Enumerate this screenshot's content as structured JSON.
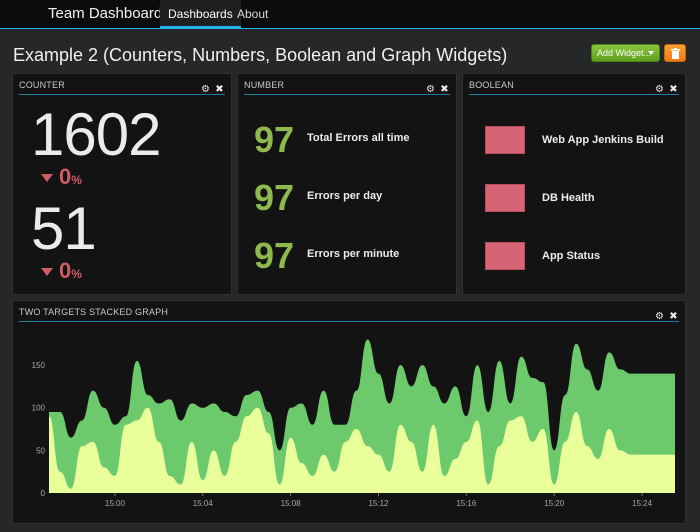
{
  "navbar": {
    "brand": "Team Dashboard",
    "links": [
      {
        "label": "Dashboards",
        "active": true
      },
      {
        "label": "About",
        "active": false
      }
    ],
    "accent_color": "#23b3e8"
  },
  "page": {
    "title": "Example 2 (Counters, Numbers, Boolean and Graph Widgets)",
    "add_widget_label": "Add Widget...",
    "add_widget_color": "#6cae27",
    "trash_color": "#f5891f"
  },
  "widgets": {
    "counter": {
      "title": "COUNTER",
      "items": [
        {
          "value": "1602",
          "delta": "0",
          "unit": "%"
        },
        {
          "value": "51",
          "delta": "0",
          "unit": "%"
        }
      ],
      "delta_color": "#cf5b65"
    },
    "number": {
      "title": "NUMBER",
      "items": [
        {
          "value": "97",
          "label": "Total Errors all time"
        },
        {
          "value": "97",
          "label": "Errors per day"
        },
        {
          "value": "97",
          "label": "Errors per minute"
        }
      ],
      "value_color": "#8fb94c"
    },
    "boolean": {
      "title": "BOOLEAN",
      "items": [
        {
          "label": "Web App Jenkins Build",
          "state": false
        },
        {
          "label": "DB Health",
          "state": false
        },
        {
          "label": "App Status",
          "state": false
        }
      ],
      "false_color": "#d76474"
    },
    "graph": {
      "title": "TWO TARGETS STACKED GRAPH"
    }
  },
  "chart_data": {
    "type": "area",
    "stacked": true,
    "title": "TWO TARGETS STACKED GRAPH",
    "xlabel": "",
    "ylabel": "",
    "x_ticks": [
      "15:00",
      "15:04",
      "15:08",
      "15:12",
      "15:16",
      "15:20",
      "15:24"
    ],
    "y_ticks": [
      0,
      50,
      100,
      150
    ],
    "ylim": [
      0,
      190
    ],
    "grid": false,
    "legend": "none",
    "x": [
      "14:57",
      "14:57:30",
      "14:58",
      "14:58:30",
      "14:59",
      "14:59:30",
      "15:00",
      "15:00:30",
      "15:01",
      "15:01:30",
      "15:02",
      "15:02:30",
      "15:03",
      "15:03:30",
      "15:04",
      "15:04:30",
      "15:05",
      "15:05:30",
      "15:06",
      "15:06:30",
      "15:07",
      "15:07:30",
      "15:08",
      "15:08:30",
      "15:09",
      "15:09:30",
      "15:10",
      "15:10:30",
      "15:11",
      "15:11:30",
      "15:12",
      "15:12:30",
      "15:13",
      "15:13:30",
      "15:14",
      "15:14:30",
      "15:15",
      "15:15:30",
      "15:16",
      "15:16:30",
      "15:17",
      "15:17:30",
      "15:18",
      "15:18:30",
      "15:19",
      "15:19:30",
      "15:20",
      "15:20:30",
      "15:21",
      "15:21:30",
      "15:22",
      "15:22:30",
      "15:23",
      "15:23:30",
      "15:24",
      "15:24:30",
      "15:25",
      "15:25:30"
    ],
    "series": [
      {
        "color": "#e8ff9a",
        "values": [
          90,
          25,
          5,
          55,
          60,
          30,
          20,
          80,
          85,
          100,
          60,
          20,
          10,
          60,
          15,
          50,
          20,
          60,
          90,
          100,
          70,
          10,
          65,
          35,
          20,
          45,
          25,
          60,
          75,
          55,
          45,
          25,
          80,
          60,
          25,
          80,
          20,
          40,
          60,
          85,
          10,
          55,
          85,
          90,
          60,
          75,
          10,
          60,
          95,
          55,
          40,
          75,
          50,
          45,
          45,
          45,
          45,
          45
        ]
      },
      {
        "color": "#6cc96c",
        "values": [
          5,
          70,
          60,
          30,
          60,
          70,
          60,
          10,
          70,
          15,
          45,
          90,
          75,
          45,
          85,
          55,
          75,
          30,
          25,
          20,
          25,
          40,
          35,
          70,
          60,
          75,
          55,
          20,
          45,
          125,
          95,
          80,
          70,
          65,
          125,
          45,
          85,
          85,
          30,
          65,
          85,
          100,
          20,
          70,
          75,
          55,
          40,
          55,
          80,
          90,
          80,
          90,
          95,
          95,
          95,
          95,
          95,
          95
        ]
      }
    ]
  }
}
